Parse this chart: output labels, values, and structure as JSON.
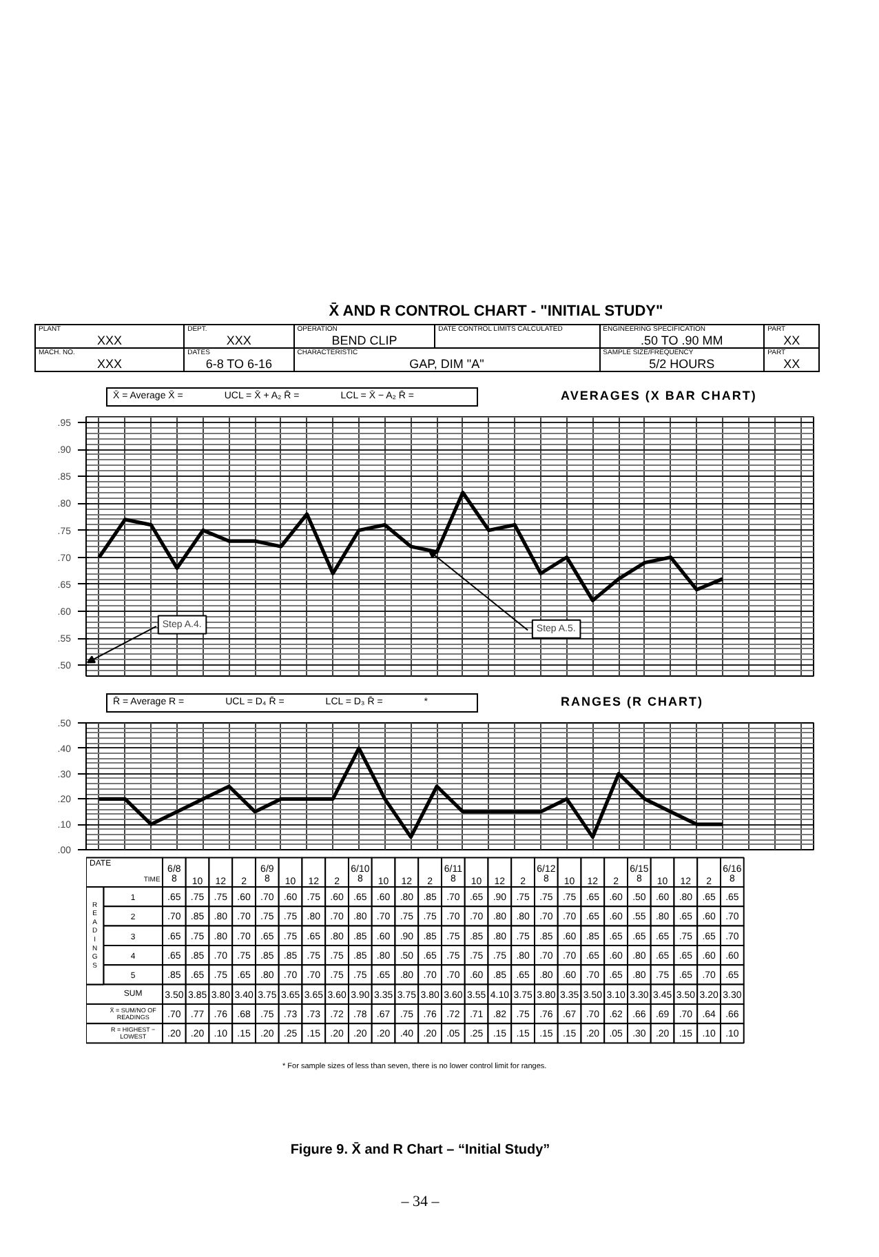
{
  "chart_data": [
    {
      "type": "line",
      "title": "X̄ AND R CONTROL CHART - \"INITIAL STUDY\"",
      "subtitle": "AVERAGES (X BAR CHART)",
      "categories": [
        null,
        null,
        null,
        null,
        null,
        null,
        null,
        null,
        null,
        null,
        null,
        null,
        null,
        null,
        null,
        null,
        null,
        null,
        null,
        null,
        null,
        null,
        null,
        null,
        null
      ],
      "series": [
        {
          "color": "#000000",
          "values": [
            0.7,
            0.77,
            0.76,
            0.68,
            0.75,
            0.73,
            0.73,
            0.72,
            0.78,
            0.67,
            0.75,
            0.76,
            0.72,
            0.71,
            0.82,
            0.75,
            0.76,
            0.67,
            0.7,
            0.62,
            0.66,
            0.69,
            0.7,
            0.64,
            0.66
          ]
        }
      ],
      "ylim": [
        0.48,
        0.96
      ],
      "yticks": [
        {
          "value": 0.5,
          "label": ".50"
        },
        {
          "value": 0.55,
          "label": ".55"
        },
        {
          "value": 0.6,
          "label": ".60"
        },
        {
          "value": 0.65,
          "label": ".65"
        },
        {
          "value": 0.7,
          "label": ".70"
        },
        {
          "value": 0.75,
          "label": ".75"
        },
        {
          "value": 0.8,
          "label": ".80"
        },
        {
          "value": 0.85,
          "label": ".85"
        },
        {
          "value": 0.9,
          "label": ".90"
        },
        {
          "value": 0.95,
          "label": ".95"
        }
      ],
      "grid": true,
      "tick_labels": "y",
      "marker": "none",
      "line_style": "solid",
      "annotations": [
        "PLANT",
        "XXX",
        "DEPT.",
        "XXX",
        "OPERATION",
        "BEND CLIP",
        "DATE CONTROL LIMITS CALCULATED",
        "ENGINEERING SPECIFICATION",
        ".50 TO .90 MM",
        "PART",
        "XX",
        "MACH. NO.",
        "XXX",
        "DATES",
        "6-8 TO 6-16",
        "CHARACTERISTIC",
        "GAP, DIM \"A\"",
        "SAMPLE SIZE/FREQUENCY",
        "5/2 HOURS",
        "PART",
        "XX",
        "X̄ = Average X̄ =",
        "UCL = X̄ + A₂ R̄ =",
        "LCL = X̄ − A₂ R̄ =",
        "Step A.4.",
        "Step A.5."
      ]
    },
    {
      "type": "line",
      "subtitle": "RANGES (R CHART)",
      "categories": [
        null,
        null,
        null,
        null,
        null,
        null,
        null,
        null,
        null,
        null,
        null,
        null,
        null,
        null,
        null,
        null,
        null,
        null,
        null,
        null,
        null,
        null,
        null,
        null,
        null
      ],
      "series": [
        {
          "color": "#000000",
          "values": [
            0.2,
            0.2,
            0.1,
            0.15,
            0.2,
            0.25,
            0.15,
            0.2,
            0.2,
            0.2,
            0.4,
            0.2,
            0.05,
            0.25,
            0.15,
            0.15,
            0.15,
            0.15,
            0.2,
            0.05,
            0.3,
            0.2,
            0.15,
            0.1,
            0.1
          ]
        }
      ],
      "ylim": [
        0,
        0.5
      ],
      "yticks": [
        {
          "value": 0,
          "label": ".00"
        },
        {
          "value": 0.1,
          "label": ".10"
        },
        {
          "value": 0.2,
          "label": ".20"
        },
        {
          "value": 0.3,
          "label": ".30"
        },
        {
          "value": 0.4,
          "label": ".40"
        },
        {
          "value": 0.5,
          "label": ".50"
        }
      ],
      "grid": true,
      "tick_labels": "y",
      "marker": "none",
      "line_style": "solid",
      "annotations": [
        "R̄ = Average R =",
        "UCL = D₄ R̄ =",
        "LCL = D₃ R̄ =",
        "*"
      ]
    },
    {
      "type": "heatmap",
      "xlabel": "TIME",
      "ylabel": "READINGS",
      "categories": [
        "6/8\n8",
        "10",
        "12",
        "2",
        "6/9\n8",
        "10",
        "12",
        "2",
        "6/10\n8",
        "10",
        "12",
        "2",
        "6/11\n8",
        "10",
        "12",
        "2",
        "6/12\n8",
        "10",
        "12",
        "2",
        "6/15\n8",
        "10",
        "12",
        "2",
        "6/16\n8"
      ],
      "y_categories": [
        "1",
        "2",
        "3",
        "4",
        "5",
        "SUM",
        "X̄ = SUM/NO OF READINGS",
        "R = HIGHEST − LOWEST"
      ],
      "cells": [
        [
          0.65,
          0.75,
          0.75,
          0.6,
          0.7,
          0.6,
          0.75,
          0.6,
          0.65,
          0.6,
          0.8,
          0.85,
          0.7,
          0.65,
          0.9,
          0.75,
          0.75,
          0.75,
          0.65,
          0.6,
          0.5,
          0.6,
          0.8,
          0.65,
          0.65
        ],
        [
          0.7,
          0.85,
          0.8,
          0.7,
          0.75,
          0.75,
          0.8,
          0.7,
          0.8,
          0.7,
          0.75,
          0.75,
          0.7,
          0.7,
          0.8,
          0.8,
          0.7,
          0.7,
          0.65,
          0.6,
          0.55,
          0.8,
          0.65,
          0.6,
          0.7
        ],
        [
          0.65,
          0.75,
          0.8,
          0.7,
          0.65,
          0.75,
          0.65,
          0.8,
          0.85,
          0.6,
          0.9,
          0.85,
          0.75,
          0.85,
          0.8,
          0.75,
          0.85,
          0.6,
          0.85,
          0.65,
          0.65,
          0.65,
          0.75,
          0.65,
          0.7
        ],
        [
          0.65,
          0.85,
          0.7,
          0.75,
          0.85,
          0.85,
          0.75,
          0.75,
          0.85,
          0.8,
          0.5,
          0.65,
          0.75,
          0.75,
          0.75,
          0.8,
          0.7,
          0.7,
          0.65,
          0.6,
          0.8,
          0.65,
          0.65,
          0.6,
          0.6
        ],
        [
          0.85,
          0.65,
          0.75,
          0.65,
          0.8,
          0.7,
          0.7,
          0.75,
          0.75,
          0.65,
          0.8,
          0.7,
          0.7,
          0.6,
          0.85,
          0.65,
          0.8,
          0.6,
          0.7,
          0.65,
          0.8,
          0.75,
          0.65,
          0.7,
          0.65
        ],
        [
          3.5,
          3.85,
          3.8,
          3.4,
          3.75,
          3.65,
          3.65,
          3.6,
          3.9,
          3.35,
          3.75,
          3.8,
          3.6,
          3.55,
          4.1,
          3.75,
          3.8,
          3.35,
          3.5,
          3.1,
          3.3,
          3.45,
          3.5,
          3.2,
          3.3
        ],
        [
          0.7,
          0.77,
          0.76,
          0.68,
          0.75,
          0.73,
          0.73,
          0.72,
          0.78,
          0.67,
          0.75,
          0.76,
          0.72,
          0.71,
          0.82,
          0.75,
          0.76,
          0.67,
          0.7,
          0.62,
          0.66,
          0.69,
          0.7,
          0.64,
          0.66
        ],
        [
          0.2,
          0.2,
          0.1,
          0.15,
          0.2,
          0.25,
          0.15,
          0.2,
          0.2,
          0.2,
          0.4,
          0.2,
          0.05,
          0.25,
          0.15,
          0.15,
          0.15,
          0.15,
          0.2,
          0.05,
          0.3,
          0.2,
          0.15,
          0.1,
          0.1
        ]
      ],
      "cell_labels": [
        [
          ".65",
          ".75",
          ".75",
          ".60",
          ".70",
          ".60",
          ".75",
          ".60",
          ".65",
          ".60",
          ".80",
          ".85",
          ".70",
          ".65",
          ".90",
          ".75",
          ".75",
          ".75",
          ".65",
          ".60",
          ".50",
          ".60",
          ".80",
          ".65",
          ".65"
        ],
        [
          ".70",
          ".85",
          ".80",
          ".70",
          ".75",
          ".75",
          ".80",
          ".70",
          ".80",
          ".70",
          ".75",
          ".75",
          ".70",
          ".70",
          ".80",
          ".80",
          ".70",
          ".70",
          ".65",
          ".60",
          ".55",
          ".80",
          ".65",
          ".60",
          ".70"
        ],
        [
          ".65",
          ".75",
          ".80",
          ".70",
          ".65",
          ".75",
          ".65",
          ".80",
          ".85",
          ".60",
          ".90",
          ".85",
          ".75",
          ".85",
          ".80",
          ".75",
          ".85",
          ".60",
          ".85",
          ".65",
          ".65",
          ".65",
          ".75",
          ".65",
          ".70"
        ],
        [
          ".65",
          ".85",
          ".70",
          ".75",
          ".85",
          ".85",
          ".75",
          ".75",
          ".85",
          ".80",
          ".50",
          ".65",
          ".75",
          ".75",
          ".75",
          ".80",
          ".70",
          ".70",
          ".65",
          ".60",
          ".80",
          ".65",
          ".65",
          ".60",
          ".60"
        ],
        [
          ".85",
          ".65",
          ".75",
          ".65",
          ".80",
          ".70",
          ".70",
          ".75",
          ".75",
          ".65",
          ".80",
          ".70",
          ".70",
          ".60",
          ".85",
          ".65",
          ".80",
          ".60",
          ".70",
          ".65",
          ".80",
          ".75",
          ".65",
          ".70",
          ".65"
        ],
        [
          "3.50",
          "3.85",
          "3.80",
          "3.40",
          "3.75",
          "3.65",
          "3.65",
          "3.60",
          "3.90",
          "3.35",
          "3.75",
          "3.80",
          "3.60",
          "3.55",
          "4.10",
          "3.75",
          "3.80",
          "3.35",
          "3.50",
          "3.10",
          "3.30",
          "3.45",
          "3.50",
          "3.20",
          "3.30"
        ],
        [
          ".70",
          ".77",
          ".76",
          ".68",
          ".75",
          ".73",
          ".73",
          ".72",
          ".78",
          ".67",
          ".75",
          ".76",
          ".72",
          ".71",
          ".82",
          ".75",
          ".76",
          ".67",
          ".70",
          ".62",
          ".66",
          ".69",
          ".70",
          ".64",
          ".66"
        ],
        [
          ".20",
          ".20",
          ".10",
          ".15",
          ".20",
          ".25",
          ".15",
          ".20",
          ".20",
          ".20",
          ".40",
          ".20",
          ".05",
          ".25",
          ".15",
          ".15",
          ".15",
          ".15",
          ".20",
          ".05",
          ".30",
          ".20",
          ".15",
          ".10",
          ".10"
        ]
      ],
      "annotations": [
        "DATE",
        "* For sample sizes of less than seven, there is no lower control limit for ranges.",
        "Figure 9.  X̄ and R Chart – “Initial Study”",
        "– 34 –"
      ]
    }
  ]
}
